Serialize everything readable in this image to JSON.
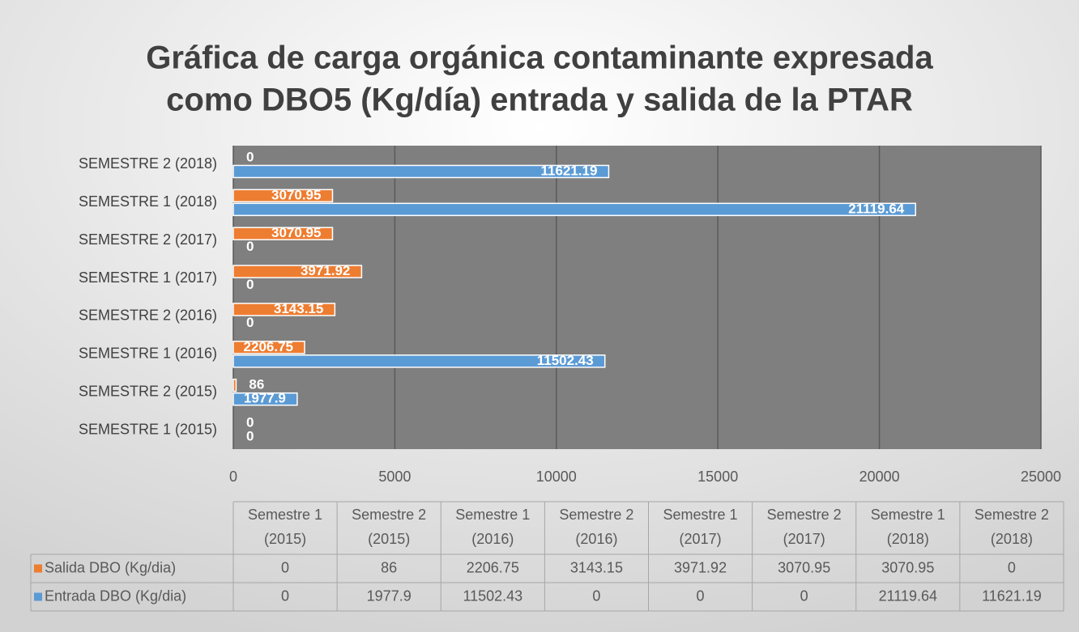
{
  "chart_data": {
    "type": "bar",
    "orientation": "horizontal",
    "title": [
      "Gráfica de carga orgánica contaminante expresada",
      "como DBO5 (Kg/día) entrada y salida de la PTAR"
    ],
    "categories": [
      "SEMESTRE 1 (2015)",
      "SEMESTRE 2 (2015)",
      "SEMESTRE 1 (2016)",
      "SEMESTRE 2 (2016)",
      "SEMESTRE 1 (2017)",
      "SEMESTRE 2 (2017)",
      "SEMESTRE 1 (2018)",
      "SEMESTRE 2 (2018)"
    ],
    "table_headers": [
      [
        "Semestre 1",
        "(2015)"
      ],
      [
        "Semestre 2",
        "(2015)"
      ],
      [
        "Semestre 1",
        "(2016)"
      ],
      [
        "Semestre 2",
        "(2016)"
      ],
      [
        "Semestre 1",
        "(2017)"
      ],
      [
        "Semestre 2",
        "(2017)"
      ],
      [
        "Semestre 1",
        "(2018)"
      ],
      [
        "Semestre 2",
        "(2018)"
      ]
    ],
    "series": [
      {
        "name": "Salida DBO  (Kg/dia)",
        "color": "#ed7d31",
        "values": [
          0,
          86,
          2206.75,
          3143.15,
          3971.92,
          3070.95,
          3070.95,
          0
        ]
      },
      {
        "name": "Entrada DBO  (Kg/dia)",
        "color": "#5b9bd5",
        "values": [
          0,
          1977.9,
          11502.43,
          0,
          0,
          0,
          21119.64,
          11621.19
        ]
      }
    ],
    "xlim": [
      0,
      25000
    ],
    "xticks": [
      0,
      5000,
      10000,
      15000,
      20000,
      25000
    ],
    "grid": true
  }
}
